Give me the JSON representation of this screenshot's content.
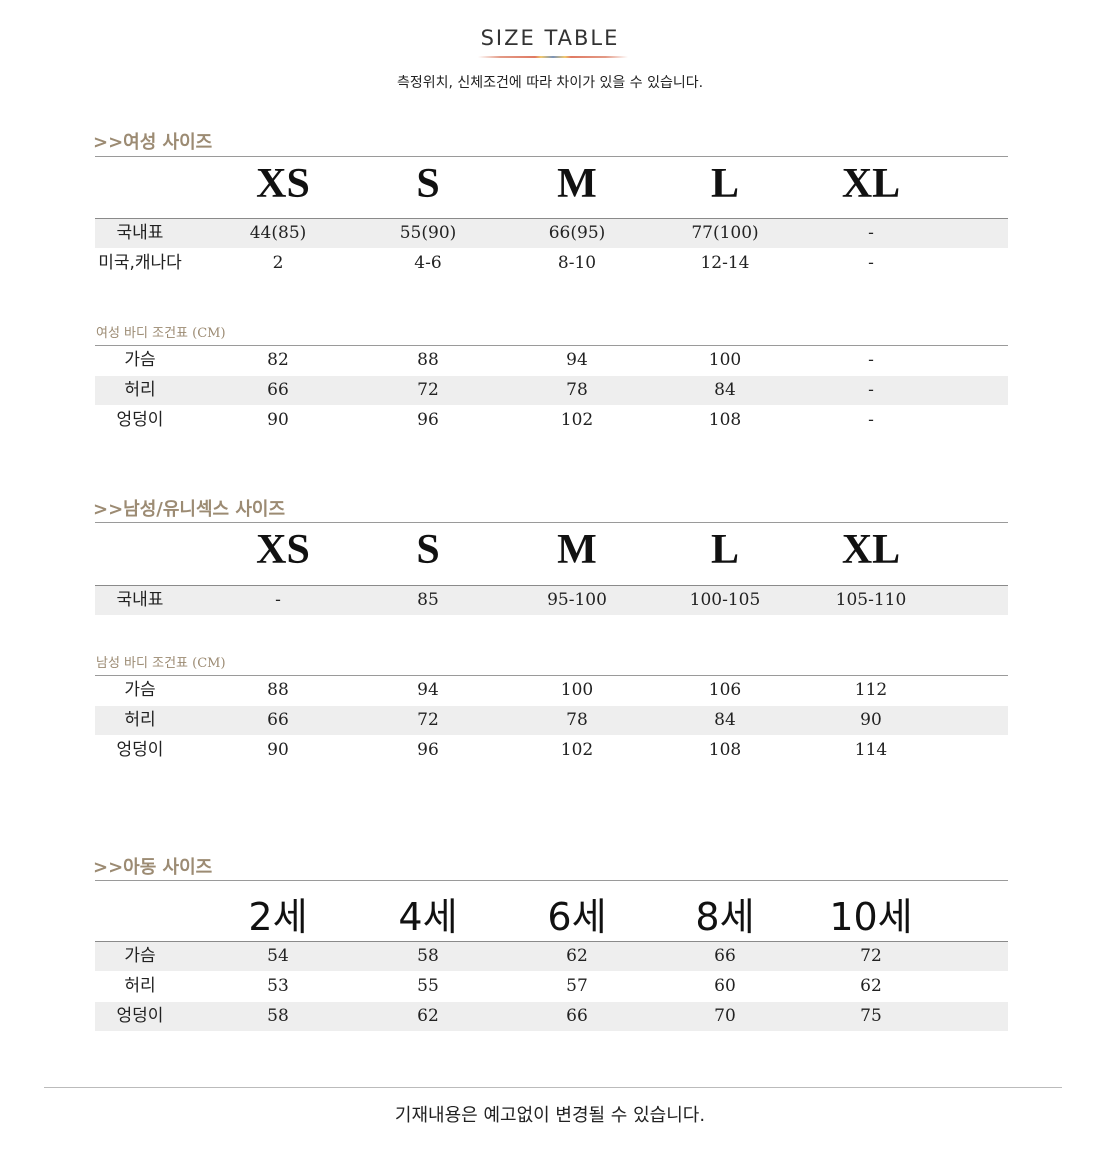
{
  "header": {
    "title": "SIZE TABLE",
    "subtitle": "측정위치, 신체조건에 따라 차이가 있을 수 있습니다."
  },
  "sections": [
    {
      "heading": ">>여성 사이즈",
      "sizes": [
        "XS",
        "S",
        "M",
        "L",
        "XL"
      ],
      "rows": [
        {
          "label": "국내표",
          "values": [
            "44(85)",
            "55(90)",
            "66(95)",
            "77(100)",
            "-"
          ],
          "shaded": true
        },
        {
          "label": "미국,캐나다",
          "values": [
            "2",
            "4-6",
            "8-10",
            "12-14",
            "-"
          ],
          "shaded": false
        }
      ],
      "body_heading": "여성 바디 조건표 (CM)",
      "body_rows": [
        {
          "label": "가슴",
          "values": [
            "82",
            "88",
            "94",
            "100",
            "-"
          ],
          "shaded": false
        },
        {
          "label": "허리",
          "values": [
            "66",
            "72",
            "78",
            "84",
            "-"
          ],
          "shaded": true
        },
        {
          "label": "엉덩이",
          "values": [
            "90",
            "96",
            "102",
            "108",
            "-"
          ],
          "shaded": false
        }
      ]
    },
    {
      "heading": ">>남성/유니섹스 사이즈",
      "sizes": [
        "XS",
        "S",
        "M",
        "L",
        "XL"
      ],
      "rows": [
        {
          "label": "국내표",
          "values": [
            "-",
            "85",
            "95-100",
            "100-105",
            "105-110"
          ],
          "shaded": true
        }
      ],
      "body_heading": "남성 바디 조건표 (CM)",
      "body_rows": [
        {
          "label": "가슴",
          "values": [
            "88",
            "94",
            "100",
            "106",
            "112"
          ],
          "shaded": false
        },
        {
          "label": "허리",
          "values": [
            "66",
            "72",
            "78",
            "84",
            "90"
          ],
          "shaded": true
        },
        {
          "label": "엉덩이",
          "values": [
            "90",
            "96",
            "102",
            "108",
            "114"
          ],
          "shaded": false
        }
      ]
    },
    {
      "heading": ">>아동 사이즈",
      "sizes": [
        "2세",
        "4세",
        "6세",
        "8세",
        "10세"
      ],
      "rows": [
        {
          "label": "가슴",
          "values": [
            "54",
            "58",
            "62",
            "66",
            "72"
          ],
          "shaded": true
        },
        {
          "label": "허리",
          "values": [
            "53",
            "55",
            "57",
            "60",
            "62"
          ],
          "shaded": false
        },
        {
          "label": "엉덩이",
          "values": [
            "58",
            "62",
            "66",
            "70",
            "75"
          ],
          "shaded": true
        }
      ]
    }
  ],
  "footer": {
    "note": "기재내용은 예고없이 변경될 수 있습니다."
  }
}
